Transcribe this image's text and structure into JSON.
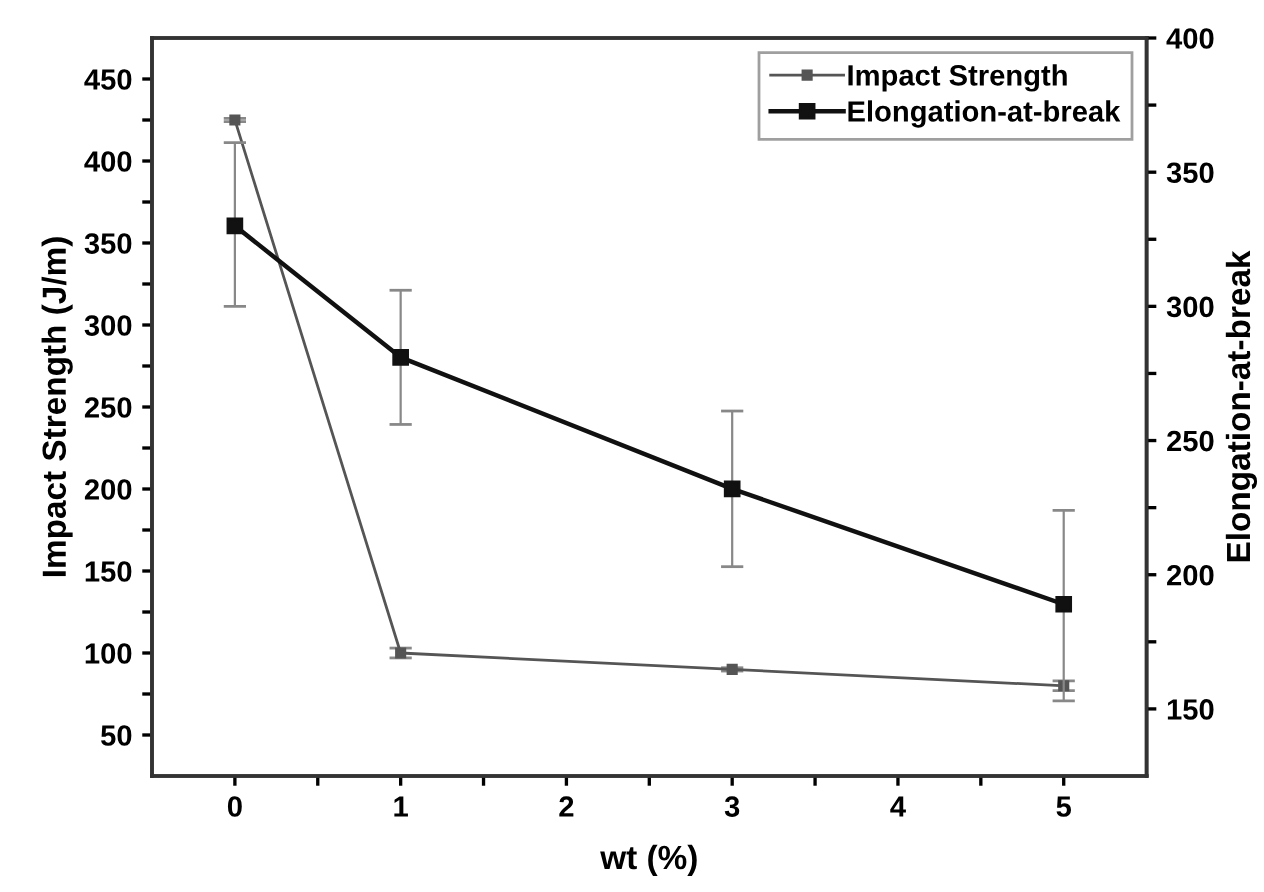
{
  "chart_data": {
    "type": "line",
    "xlabel": "wt (%)",
    "ylabel": "Impact Strength (J/m)",
    "y2label": "Elongation-at-break",
    "x": [
      0,
      1,
      3,
      5
    ],
    "series": [
      {
        "name": "Impact Strength",
        "color": "#555555",
        "values": [
          425,
          100,
          90,
          80
        ],
        "errors": [
          1,
          3,
          1,
          3
        ],
        "marker": "square",
        "axis": "y"
      },
      {
        "name": "Elongation-at-break",
        "color": "#111111",
        "values": [
          330,
          281,
          232,
          189
        ],
        "errors": [
          [
            300,
            361
          ],
          [
            256,
            306
          ],
          [
            203,
            261
          ],
          [
            153,
            224
          ]
        ],
        "marker": "square",
        "axis": "y2"
      }
    ],
    "xlim": [
      -0.5,
      5.5
    ],
    "ylim": [
      25,
      475
    ],
    "y2lim": [
      125,
      400
    ],
    "xticks": [
      0,
      {
        "value": 0.5,
        "label": null
      },
      1,
      {
        "value": 1.5,
        "label": null
      },
      2,
      {
        "value": 2.5,
        "label": null
      },
      3,
      {
        "value": 3.5,
        "label": null
      },
      4,
      {
        "value": 4.5,
        "label": null
      },
      5
    ],
    "yticks": [
      50,
      {
        "value": 75,
        "label": null
      },
      100,
      {
        "value": 125,
        "label": null
      },
      150,
      {
        "value": 175,
        "label": null
      },
      200,
      {
        "value": 225,
        "label": null
      },
      250,
      {
        "value": 275,
        "label": null
      },
      300,
      {
        "value": 325,
        "label": null
      },
      350,
      {
        "value": 375,
        "label": null
      },
      400,
      {
        "value": 425,
        "label": null
      },
      450
    ],
    "y2ticks": [
      150,
      {
        "value": 175,
        "label": null
      },
      200,
      {
        "value": 225,
        "label": null
      },
      250,
      {
        "value": 275,
        "label": null
      },
      300,
      {
        "value": 325,
        "label": null
      },
      350,
      {
        "value": 375,
        "label": null
      },
      400
    ],
    "legend": "top right",
    "line_style": "solid",
    "grid": false
  }
}
